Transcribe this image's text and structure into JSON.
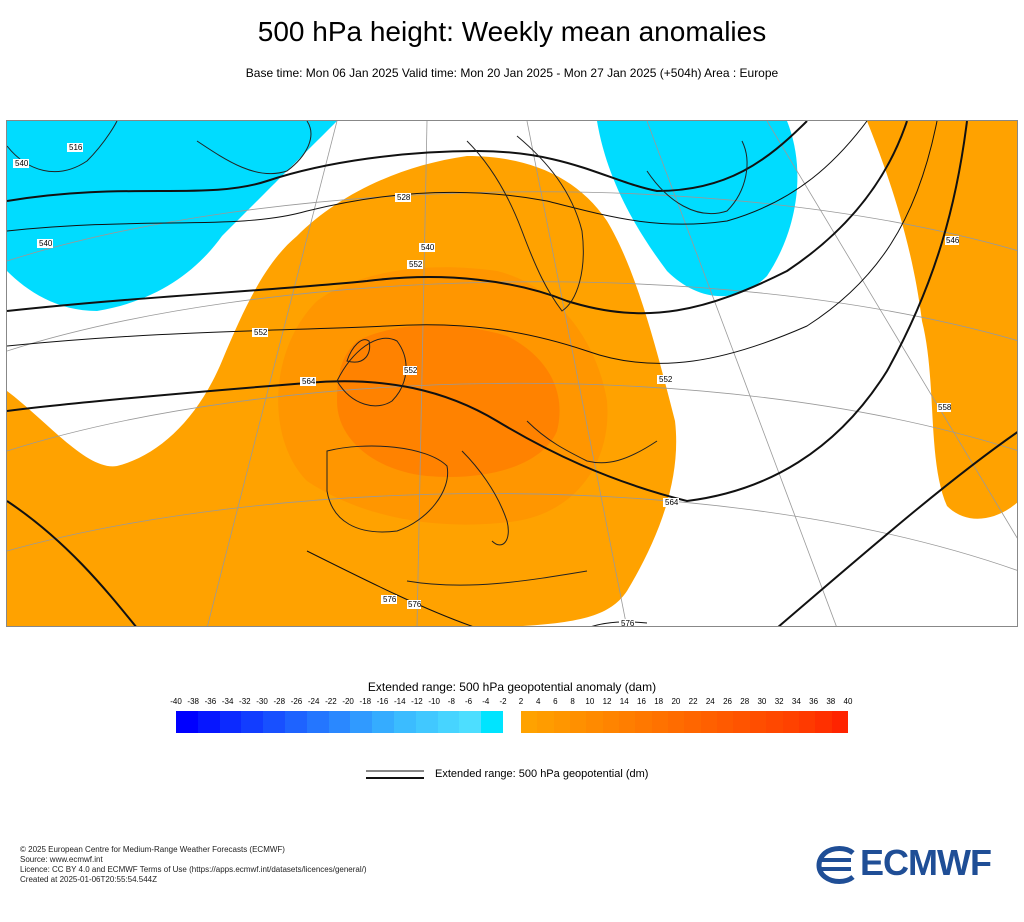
{
  "header": {
    "title": "500 hPa height: Weekly mean anomalies",
    "subtitle": "Base time: Mon 06 Jan 2025 Valid time: Mon 20 Jan 2025 - Mon 27 Jan 2025 (+504h) Area : Europe"
  },
  "map": {
    "colors": {
      "negative_light": "#00dcff",
      "positive_light": "#ffa200",
      "positive_mid": "#ff8c00",
      "positive_deep": "#ff7300",
      "land_outline": "#222222",
      "contour": "#111111",
      "graticule": "#999999"
    },
    "contour_labels": [
      "516",
      "528",
      "540",
      "540",
      "552",
      "552",
      "552",
      "564",
      "564",
      "576",
      "576",
      "576",
      "552",
      "540",
      "546",
      "558"
    ]
  },
  "legend": {
    "anomaly_title": "Extended range: 500 hPa geopotential anomaly (dam)",
    "ticks": [
      "-40",
      "-38",
      "-36",
      "-34",
      "-32",
      "-30",
      "-28",
      "-26",
      "-24",
      "-22",
      "-20",
      "-18",
      "-16",
      "-14",
      "-12",
      "-10",
      "-8",
      "-6",
      "-4",
      "-2",
      "2",
      "4",
      "6",
      "8",
      "10",
      "12",
      "14",
      "16",
      "18",
      "20",
      "22",
      "24",
      "26",
      "28",
      "30",
      "32",
      "34",
      "36",
      "38",
      "40"
    ],
    "negative_colors": [
      "#0000ff",
      "#0616ff",
      "#0c2aff",
      "#123dff",
      "#1850ff",
      "#1e63ff",
      "#2476ff",
      "#2a88ff",
      "#309aff",
      "#35acff",
      "#3bbcff",
      "#41c8ff",
      "#47d4ff",
      "#4ddeff",
      "#00e4ff"
    ],
    "positive_colors": [
      "#ffa200",
      "#ff9c00",
      "#ff9600",
      "#ff9000",
      "#ff8a00",
      "#ff8400",
      "#ff7e00",
      "#ff7800",
      "#ff7200",
      "#ff6c00",
      "#ff6600",
      "#ff6000",
      "#ff5a00",
      "#ff5400",
      "#ff4e00",
      "#ff4800",
      "#ff4200",
      "#ff3a00",
      "#ff3000",
      "#ff2400"
    ],
    "contour_label": "Extended range: 500 hPa geopotential (dm)"
  },
  "footer": {
    "line1": "© 2025 European Centre for Medium-Range Weather Forecasts (ECMWF)",
    "line2": "Source: www.ecmwf.int",
    "line3": "Licence: CC BY 4.0 and ECMWF Terms of Use (https://apps.ecmwf.int/datasets/licences/general/)",
    "line4": "Created at 2025-01-06T20:55:54.544Z"
  },
  "logo": {
    "text": "ECMWF",
    "color": "#1f4e96"
  }
}
